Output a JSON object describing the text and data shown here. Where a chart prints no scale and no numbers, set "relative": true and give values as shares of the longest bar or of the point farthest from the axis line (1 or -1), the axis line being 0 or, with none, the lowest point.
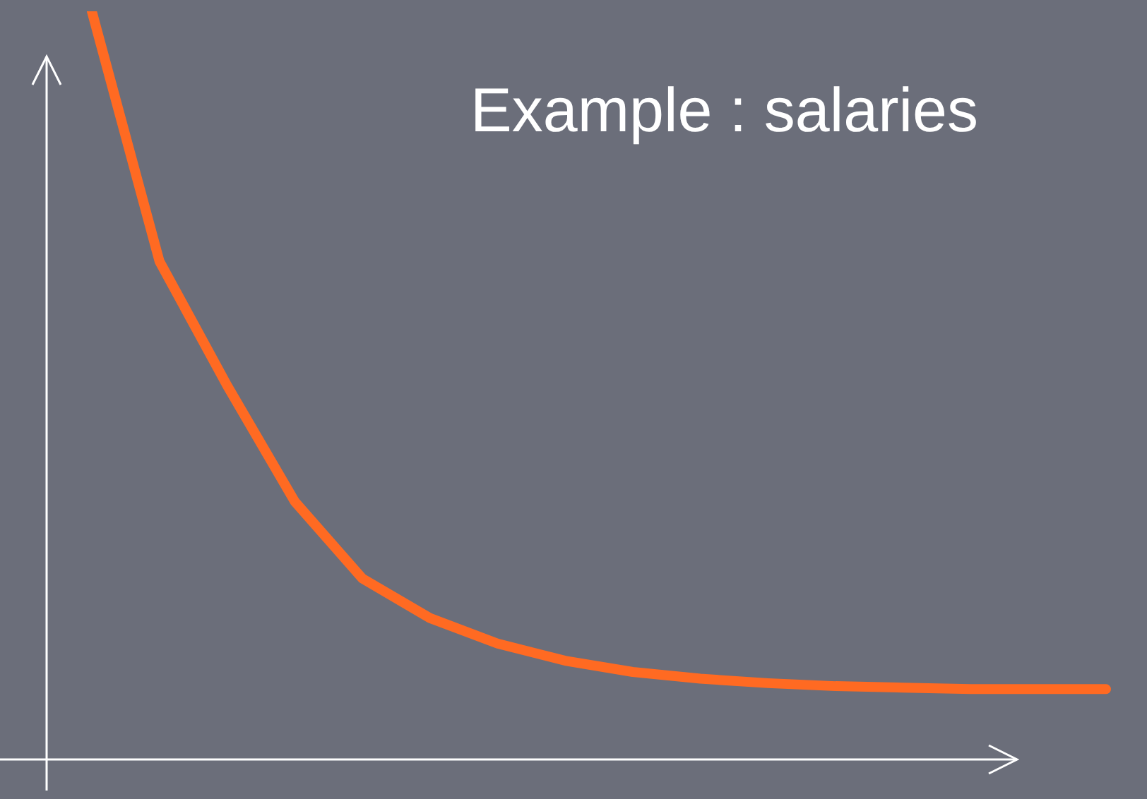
{
  "chart_data": {
    "type": "line",
    "title": "Example : salaries",
    "relative": true,
    "categories": [
      null,
      null,
      null,
      null,
      null,
      null,
      null,
      null,
      null,
      null,
      null,
      null,
      null,
      null,
      null,
      null
    ],
    "series": [
      {
        "color": "#ff6a22",
        "values": [
          1,
          0.666,
          0.5,
          0.345,
          0.242,
          0.189,
          0.155,
          0.132,
          0.117,
          0.108,
          0.102,
          0.098,
          0.096,
          0.094,
          0.094,
          0.094
        ]
      }
    ],
    "marker": "none",
    "line_style": "solid",
    "grid": false,
    "legend": false
  }
}
